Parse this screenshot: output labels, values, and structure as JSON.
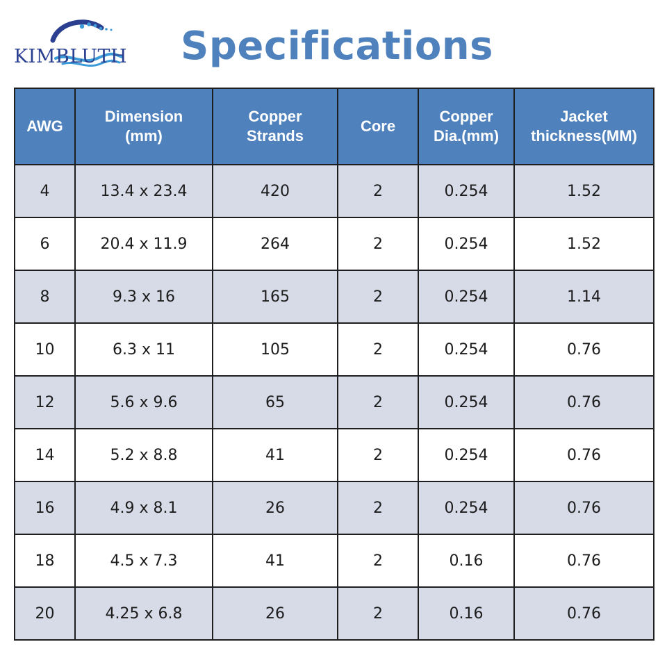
{
  "brand": {
    "name": "KIMBLUTH",
    "logo_color": "#2a3f8f",
    "wave_color": "#3b9bd8"
  },
  "title": "Specifications",
  "colors": {
    "accent": "#4f81bd",
    "row_shade": "#d7dbe8",
    "border": "#1e1e1e"
  },
  "table": {
    "headers": [
      "AWG",
      "Dimension\n(mm)",
      "Copper\nStrands",
      "Core",
      "Copper\nDia.(mm)",
      "Jacket\nthickness(MM)"
    ],
    "rows": [
      [
        "4",
        "13.4 x 23.4",
        "420",
        "2",
        "0.254",
        "1.52"
      ],
      [
        "6",
        "20.4 x 11.9",
        "264",
        "2",
        "0.254",
        "1.52"
      ],
      [
        "8",
        "9.3 x 16",
        "165",
        "2",
        "0.254",
        "1.14"
      ],
      [
        "10",
        "6.3 x 11",
        "105",
        "2",
        "0.254",
        "0.76"
      ],
      [
        "12",
        "5.6 x 9.6",
        "65",
        "2",
        "0.254",
        "0.76"
      ],
      [
        "14",
        "5.2 x 8.8",
        "41",
        "2",
        "0.254",
        "0.76"
      ],
      [
        "16",
        "4.9 x 8.1",
        "26",
        "2",
        "0.254",
        "0.76"
      ],
      [
        "18",
        "4.5 x 7.3",
        "41",
        "2",
        "0.16",
        "0.76"
      ],
      [
        "20",
        "4.25 x 6.8",
        "26",
        "2",
        "0.16",
        "0.76"
      ]
    ]
  }
}
